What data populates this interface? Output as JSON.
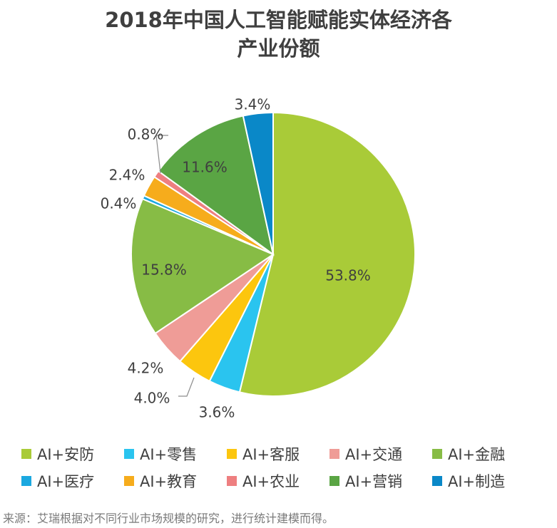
{
  "title_line1": "2018年中国人工智能赋能实体经济各",
  "title_line2": "产业份额",
  "source": "来源：艾瑞根据对不同行业市场规模的研究，进行统计建模而得。",
  "chart_data": {
    "type": "pie",
    "title": "2018年中国人工智能赋能实体经济各产业份额",
    "start": "12 o'clock, clockwise",
    "categories": [
      "AI+安防",
      "AI+零售",
      "AI+客服",
      "AI+交通",
      "AI+金融",
      "AI+医疗",
      "AI+教育",
      "AI+农业",
      "AI+营销",
      "AI+制造"
    ],
    "values": [
      53.8,
      3.6,
      4.0,
      4.2,
      15.8,
      0.4,
      2.4,
      0.8,
      11.6,
      3.4
    ],
    "labels": [
      "53.8%",
      "3.6%",
      "4.0%",
      "4.2%",
      "15.8%",
      "0.4%",
      "2.4%",
      "0.8%",
      "11.6%",
      "3.4%"
    ],
    "colors": [
      "#a9cb38",
      "#2ac4ef",
      "#fcc60e",
      "#ef9c97",
      "#87bc45",
      "#1ba8e0",
      "#f6ac1c",
      "#ee7f80",
      "#5aa544",
      "#0a88c8"
    ],
    "legend_position": "bottom"
  }
}
